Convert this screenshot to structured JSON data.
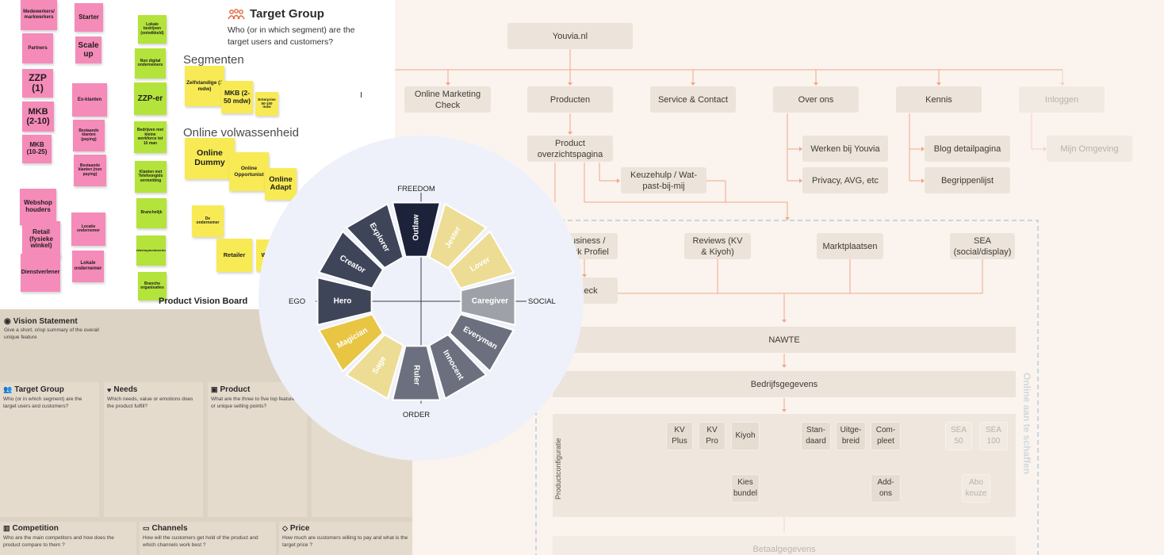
{
  "sitemap": {
    "root": "Youvia.nl",
    "level1": [
      "Online Marketing Check",
      "Producten",
      "Service & Contact",
      "Over ons",
      "Kennis",
      "Inloggen"
    ],
    "product_overview": "Product overzichtspagina",
    "keuzehulp": "Keuzehulp / Wat-past-bij-mij",
    "over_ons_children": [
      "Werken bij Youvia",
      "Privacy, AVG, etc"
    ],
    "kennis_children": [
      "Blog detailpagina",
      "Begrippenlijst"
    ],
    "inloggen_child": "Mijn Omgeving",
    "business_profile": "Business / Werk Profiel",
    "check": "Check",
    "reviews": "Reviews (KV & Kiyoh)",
    "marktplaatsen": "Marktplaatsen",
    "sea": "SEA (social/display)",
    "nawte": "NAWTE",
    "bedrijfsgegevens": "Bedrijfsgegevens",
    "productconfiguratie": "Productconfiguratie",
    "config_options": [
      "KV Plus",
      "KV Pro",
      "Kiyoh",
      "Stan-daard",
      "Uitge-breid",
      "Com-pleet",
      "SEA 50",
      "SEA 100"
    ],
    "kies_bundel": "Kies bundel",
    "add_ons": "Add-ons",
    "abo_keuze": "Abo keuze",
    "betaalgegevens": "Betaalgegevens",
    "online_label": "Online aan te schaffen"
  },
  "target_board": {
    "title": "Target Group",
    "subtitle": "Who (or in which segment) are the target users and customers?",
    "segmenten": "Segmenten",
    "online_volwassenheid": "Online volwassenheid",
    "pink_notes": [
      "Medewerkers/ markwerkers",
      "Starter",
      "Partners",
      "Scale up",
      "ZZP (1)",
      "MKB (2-10)",
      "Ex-klanten",
      "Bestaande klanten (paying)",
      "MKB (10-25)",
      "Bestaande klanten (non paying)",
      "Webshop houders",
      "Retail (fysieke winkel)",
      "Locatie ondernemer",
      "Dienstverlener",
      "Lokale ondernemer"
    ],
    "green_notes": [
      "Lokale bedrijven (ontwikkeld)",
      "Non digital ondernemers",
      "ZZP-er",
      "Bedrijven met kleine workforce tot 10 man",
      "Klanten met Telefoongids vermelding",
      "Branchelijk",
      "Webshopmedewerker",
      "Branche organisaties"
    ],
    "yellow_notes": [
      "Zelfstandige (1 mdw)",
      "MKB (2-50 mdw)",
      "Enterprise 50-100 mdw",
      "Online Dummy",
      "Online Opportunist",
      "Online Adapt",
      "De ondernemer",
      "Retailer",
      "W"
    ]
  },
  "vision_board": {
    "title": "Product Vision Board",
    "vision_statement": "Vision Statement",
    "vision_desc": "Give a short, crisp summary of the overall unique feature",
    "cells": [
      {
        "title": "Target Group",
        "desc": "Who (or in which segment) are the target users and customers?"
      },
      {
        "title": "Needs",
        "desc": "Which needs, value or emotions does the product fulfill?"
      },
      {
        "title": "Product",
        "desc": "What are the three to five top features or unique selling points?"
      }
    ],
    "bottom_cells": [
      {
        "title": "Competition",
        "desc": "Who are the main competitors and how does the product compare to them ?"
      },
      {
        "title": "Channels",
        "desc": "How will the customers get hold of the product and which channels work best ?"
      },
      {
        "title": "Price",
        "desc": "How much are customers willing to pay and what is the target price ?"
      }
    ]
  },
  "wheel": {
    "axes": {
      "top": "FREEDOM",
      "bottom": "ORDER",
      "left": "EGO",
      "right": "SOCIAL"
    },
    "segments": [
      {
        "name": "Outlaw",
        "color": "#1c2239",
        "text": "#ffffff"
      },
      {
        "name": "Jester",
        "color": "#eddc93",
        "text": "#ffffff"
      },
      {
        "name": "Lover",
        "color": "#eddc93",
        "text": "#ffffff"
      },
      {
        "name": "Caregiver",
        "color": "#9fa1a8",
        "text": "#ffffff"
      },
      {
        "name": "Everyman",
        "color": "#6c6f7d",
        "text": "#ffffff"
      },
      {
        "name": "Innocent",
        "color": "#6c6f7d",
        "text": "#ffffff"
      },
      {
        "name": "Ruler",
        "color": "#6c6f7d",
        "text": "#ffffff"
      },
      {
        "name": "Sage",
        "color": "#eddc93",
        "text": "#ffffff"
      },
      {
        "name": "Magician",
        "color": "#e8c543",
        "text": "#ffffff"
      },
      {
        "name": "Hero",
        "color": "#3f4559",
        "text": "#ffffff"
      },
      {
        "name": "Creator",
        "color": "#3f4559",
        "text": "#ffffff"
      },
      {
        "name": "Explorer",
        "color": "#3f4559",
        "text": "#ffffff"
      }
    ]
  }
}
